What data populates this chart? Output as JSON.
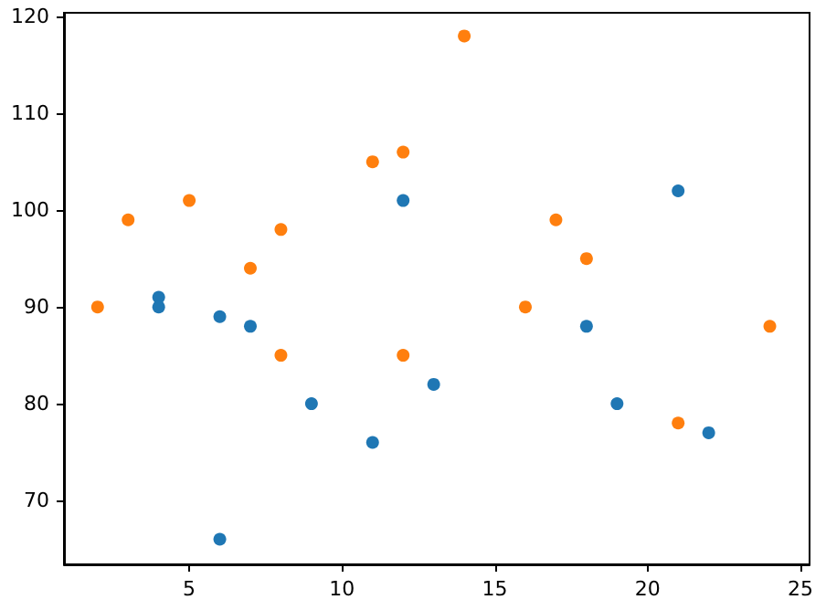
{
  "chart_data": {
    "type": "scatter",
    "marker": "circle",
    "grid": false,
    "xlim": [
      0.9,
      25.3
    ],
    "ylim": [
      63.4,
      120.4
    ],
    "xticks": [
      5,
      10,
      15,
      20,
      25
    ],
    "yticks": [
      70,
      80,
      90,
      100,
      110,
      120
    ],
    "series": [
      {
        "color": "#1f77b4",
        "x": [
          4,
          4,
          6,
          7,
          6,
          9,
          11,
          12,
          13,
          18,
          19,
          21,
          22
        ],
        "values": [
          91,
          90,
          89,
          88,
          66,
          80,
          76,
          101,
          82,
          88,
          80,
          102,
          77
        ]
      },
      {
        "color": "#ff7f0e",
        "x": [
          2,
          3,
          5,
          7,
          8,
          8,
          11,
          12,
          12,
          14,
          16,
          17,
          18,
          21,
          24
        ],
        "values": [
          90,
          99,
          101,
          94,
          98,
          85,
          105,
          106,
          85,
          118,
          90,
          99,
          95,
          78,
          88
        ]
      }
    ]
  }
}
